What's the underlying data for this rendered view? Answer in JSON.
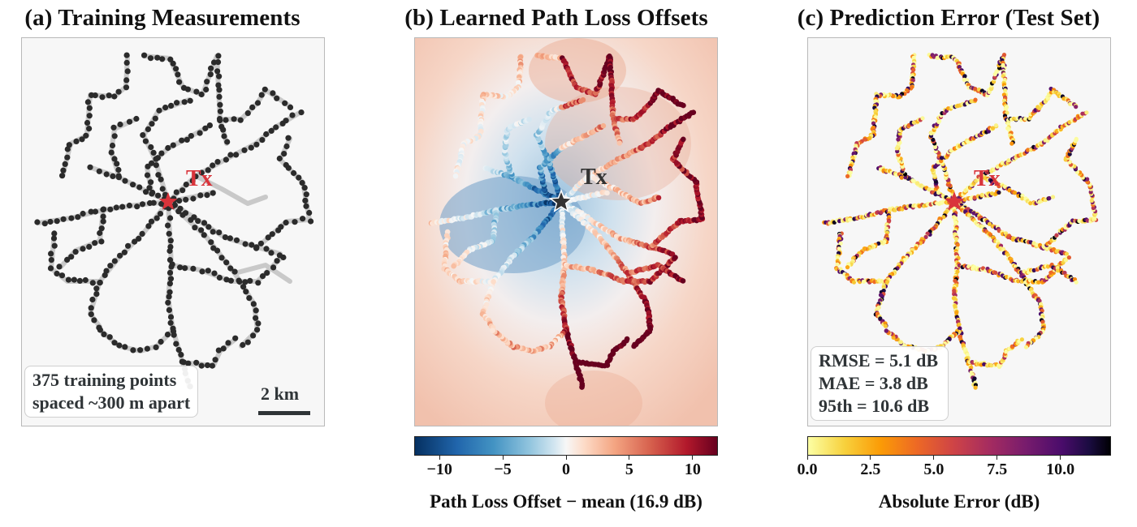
{
  "panels": {
    "a": {
      "title": "(a) Training Measurements",
      "tx_label": "Tx",
      "annotation_lines": [
        "375 training points",
        "spaced ~300 m apart"
      ],
      "scalebar_label": "2 km"
    },
    "b": {
      "title": "(b) Learned Path Loss Offsets",
      "tx_label": "Tx",
      "colorbar": {
        "label": "Path Loss Offset − mean (16.9 dB)",
        "ticks": [
          "−10",
          "−5",
          "0",
          "5",
          "10"
        ],
        "range": [
          -12,
          12
        ],
        "colormap": "RdBu_r"
      }
    },
    "c": {
      "title": "(c) Prediction Error (Test Set)",
      "tx_label": "Tx",
      "annotation_lines": [
        "RMSE = 5.1 dB",
        "MAE = 3.8 dB",
        "95th = 10.6 dB"
      ],
      "colorbar": {
        "label": "Absolute Error (dB)",
        "ticks": [
          "0.0",
          "2.5",
          "5.0",
          "7.5",
          "10.0"
        ],
        "range": [
          0,
          12
        ],
        "colormap": "inferno_r"
      }
    }
  },
  "colors": {
    "tx_star_a": "#d9343b",
    "tx_star_b": "#333333",
    "tx_star_c": "#d9343b",
    "tx_label_red": "#d9343b",
    "tx_label_dark": "#333333",
    "point_dark": "#2b2b2b",
    "route_gray": "#c9c9c9"
  },
  "chart_data": [
    {
      "type": "scatter",
      "title": "(a) Training Measurements",
      "description": "375 training points",
      "point_count": 375,
      "annotation": "375 training points spaced ~300 m apart",
      "scale": "2 km"
    },
    {
      "type": "heatmap",
      "title": "(b) Learned Path Loss Offsets",
      "colorbar_label": "Path Loss Offset − mean (16.9 dB)",
      "colorbar_ticks": [
        -10,
        -5,
        0,
        5,
        10
      ],
      "colorbar_range": [
        -12,
        12
      ]
    },
    {
      "type": "scatter",
      "title": "(c) Prediction Error (Test Set)",
      "colorbar_label": "Absolute Error (dB)",
      "colorbar_ticks": [
        0.0,
        2.5,
        5.0,
        7.5,
        10.0
      ],
      "colorbar_range": [
        0,
        12
      ],
      "stats": {
        "RMSE_dB": 5.1,
        "MAE_dB": 3.8,
        "p95_dB": 10.6
      }
    }
  ]
}
